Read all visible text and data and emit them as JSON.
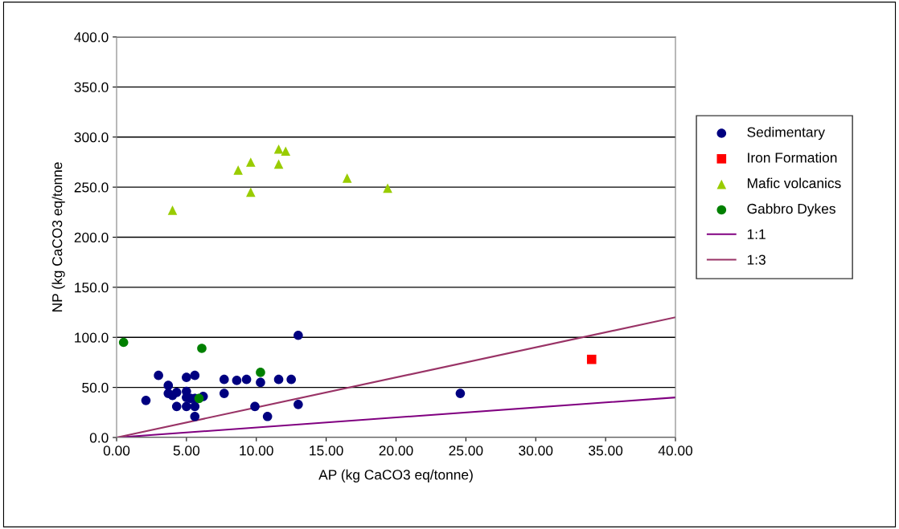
{
  "chart_data": {
    "type": "scatter",
    "xlabel": "AP (kg CaCO3 eq/tonne)",
    "ylabel": "NP (kg CaCO3 eq/tonne",
    "xlim": [
      0,
      40
    ],
    "ylim": [
      0,
      400
    ],
    "xticks": [
      {
        "value": 0,
        "label": "0.00"
      },
      {
        "value": 5,
        "label": "5.00"
      },
      {
        "value": 10,
        "label": "10.00"
      },
      {
        "value": 15,
        "label": "15.00"
      },
      {
        "value": 20,
        "label": "20.00"
      },
      {
        "value": 25,
        "label": "25.00"
      },
      {
        "value": 30,
        "label": "30.00"
      },
      {
        "value": 35,
        "label": "35.00"
      },
      {
        "value": 40,
        "label": "40.00"
      }
    ],
    "yticks": [
      {
        "value": 0,
        "label": "0.0"
      },
      {
        "value": 50,
        "label": "50.0"
      },
      {
        "value": 100,
        "label": "100.0"
      },
      {
        "value": 150,
        "label": "150.0"
      },
      {
        "value": 200,
        "label": "200.0"
      },
      {
        "value": 250,
        "label": "250.0"
      },
      {
        "value": 300,
        "label": "300.0"
      },
      {
        "value": 350,
        "label": "350.0"
      },
      {
        "value": 400,
        "label": "400.0"
      }
    ],
    "grid": "y",
    "legend": "right",
    "series": [
      {
        "name": "Sedimentary",
        "color": "#000080",
        "marker": "circle",
        "x": [
          2.1,
          3.0,
          3.7,
          3.7,
          4.0,
          4.3,
          4.3,
          5.0,
          5.0,
          5.0,
          5.0,
          5.3,
          5.6,
          5.6,
          5.6,
          5.6,
          6.2,
          7.7,
          7.7,
          8.6,
          9.3,
          9.9,
          10.3,
          10.8,
          11.6,
          12.5,
          13.0,
          13.0,
          24.6
        ],
        "values": [
          37,
          62,
          52,
          44,
          42,
          45,
          31,
          60,
          46,
          40,
          31,
          39,
          62,
          31,
          21,
          39,
          41,
          58,
          44,
          57,
          58,
          31,
          55,
          21,
          58,
          58,
          102,
          33,
          44
        ]
      },
      {
        "name": "Iron Formation",
        "color": "#ff0000",
        "marker": "square",
        "x": [
          34.0
        ],
        "values": [
          78
        ]
      },
      {
        "name": "Mafic volcanics",
        "color": "#99cc00",
        "marker": "triangle",
        "x": [
          4.0,
          8.7,
          9.6,
          9.6,
          11.6,
          12.1,
          11.6,
          16.5,
          19.4
        ],
        "values": [
          227,
          267,
          275,
          245,
          288,
          286,
          273,
          259,
          249
        ]
      },
      {
        "name": "Gabbro Dykes",
        "color": "#008000",
        "marker": "circle",
        "x": [
          0.5,
          6.1,
          10.3,
          5.9
        ],
        "values": [
          95,
          89,
          65,
          39
        ]
      },
      {
        "name": "1:1",
        "type": "line",
        "color": "#800080",
        "marker": "none",
        "x": [
          0,
          40
        ],
        "values": [
          0,
          40
        ]
      },
      {
        "name": "1:3",
        "type": "line",
        "color": "#993366",
        "marker": "none",
        "x": [
          0,
          40
        ],
        "values": [
          0,
          120
        ]
      }
    ]
  }
}
